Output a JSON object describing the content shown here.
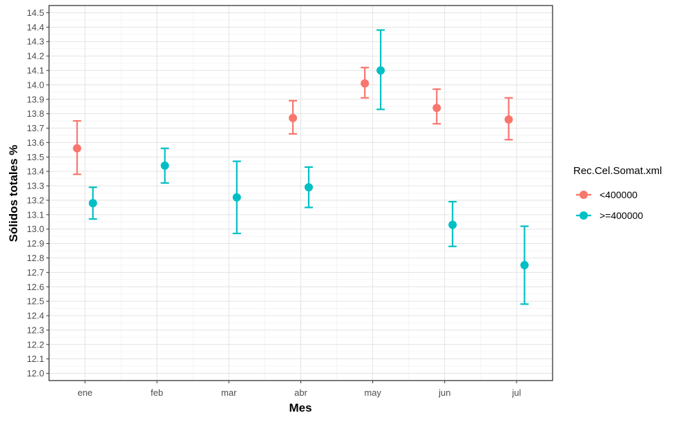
{
  "chart_data": {
    "type": "scatter",
    "title": "",
    "xlabel": "Mes",
    "ylabel": "Sólidos totales %",
    "categories": [
      "ene",
      "feb",
      "mar",
      "abr",
      "may",
      "jun",
      "jul"
    ],
    "ylim": [
      11.95,
      14.55
    ],
    "yticks": [
      "12.0",
      "12.1",
      "12.2",
      "12.3",
      "12.4",
      "12.5",
      "12.6",
      "12.7",
      "12.8",
      "12.9",
      "13.0",
      "13.1",
      "13.2",
      "13.3",
      "13.4",
      "13.5",
      "13.6",
      "13.7",
      "13.8",
      "13.9",
      "14.0",
      "14.1",
      "14.2",
      "14.3",
      "14.4",
      "14.5"
    ],
    "grid": true,
    "error_bars": true,
    "legend": {
      "title": "Rec.Cel.Somat.xml",
      "position": "right"
    },
    "series": [
      {
        "name": "<400000",
        "color": "#F8766D",
        "points": [
          {
            "x": "ene",
            "y": 13.56,
            "lower": 13.38,
            "upper": 13.75
          },
          {
            "x": "abr",
            "y": 13.77,
            "lower": 13.66,
            "upper": 13.89
          },
          {
            "x": "may",
            "y": 14.01,
            "lower": 13.91,
            "upper": 14.12
          },
          {
            "x": "jun",
            "y": 13.84,
            "lower": 13.73,
            "upper": 13.97
          },
          {
            "x": "jul",
            "y": 13.76,
            "lower": 13.62,
            "upper": 13.91
          }
        ]
      },
      {
        "name": ">=400000",
        "color": "#00BFC4",
        "points": [
          {
            "x": "ene",
            "y": 13.18,
            "lower": 13.07,
            "upper": 13.29
          },
          {
            "x": "feb",
            "y": 13.44,
            "lower": 13.32,
            "upper": 13.56
          },
          {
            "x": "mar",
            "y": 13.22,
            "lower": 12.97,
            "upper": 13.47
          },
          {
            "x": "abr",
            "y": 13.29,
            "lower": 13.15,
            "upper": 13.43
          },
          {
            "x": "may",
            "y": 14.1,
            "lower": 13.83,
            "upper": 14.38
          },
          {
            "x": "jun",
            "y": 13.03,
            "lower": 12.88,
            "upper": 13.19
          },
          {
            "x": "jul",
            "y": 12.75,
            "lower": 12.48,
            "upper": 13.02
          }
        ]
      }
    ]
  }
}
